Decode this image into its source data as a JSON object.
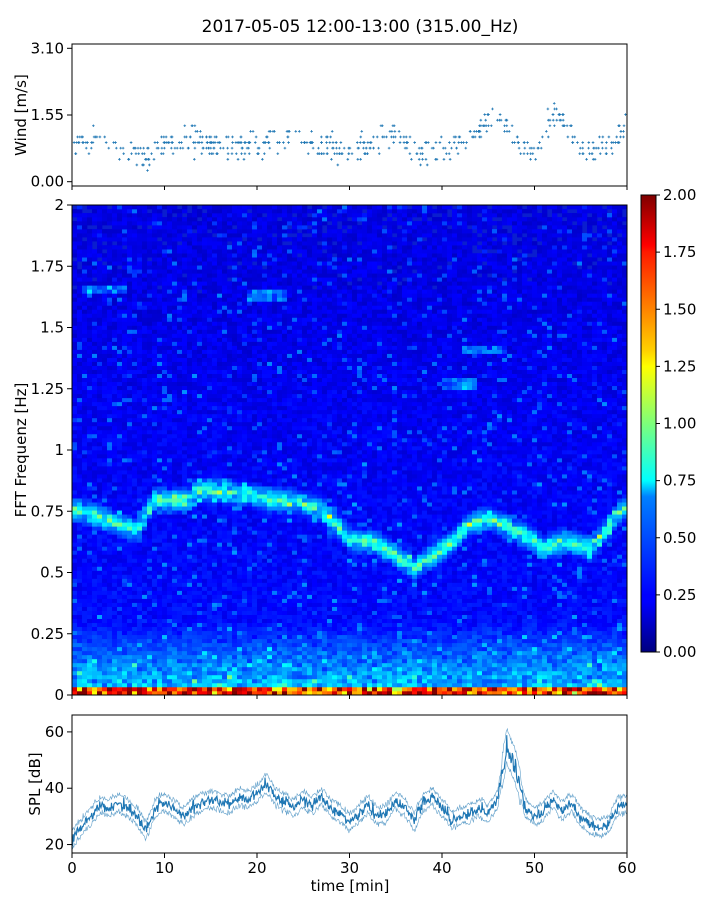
{
  "title": "2017-05-05 12:00-13:00 (315.00_Hz)",
  "chart_data": [
    {
      "id": "wind",
      "type": "scatter",
      "ylabel": "Wind [m/s]",
      "xlim": [
        0,
        60
      ],
      "ylim": [
        -0.1,
        3.2
      ],
      "yticks": [
        "0.00",
        "1.55",
        "3.10"
      ],
      "ytick_values": [
        0,
        1.55,
        3.1
      ],
      "color": "#1f77b4",
      "levels_mean": [
        [
          0,
          0.8
        ],
        [
          3,
          1.0
        ],
        [
          6,
          0.7
        ],
        [
          8,
          0.5
        ],
        [
          10,
          0.8
        ],
        [
          13,
          1.0
        ],
        [
          16,
          0.8
        ],
        [
          20,
          0.9
        ],
        [
          24,
          1.1
        ],
        [
          27,
          0.8
        ],
        [
          30,
          0.7
        ],
        [
          33,
          0.9
        ],
        [
          35,
          1.1
        ],
        [
          38,
          0.7
        ],
        [
          41,
          0.8
        ],
        [
          44,
          1.2
        ],
        [
          46,
          1.5
        ],
        [
          48,
          1.0
        ],
        [
          50,
          0.6
        ],
        [
          52,
          1.6
        ],
        [
          54,
          1.1
        ],
        [
          56,
          0.7
        ],
        [
          58,
          0.9
        ],
        [
          60,
          1.2
        ]
      ]
    },
    {
      "id": "spectrogram",
      "type": "heatmap",
      "ylabel": "FFT Frequenz [Hz]",
      "xlim": [
        0,
        60
      ],
      "ylim": [
        0,
        2
      ],
      "yticks": [
        "0",
        "0.25",
        "0.5",
        "0.75",
        "1",
        "1.25",
        "1.5",
        "1.75",
        "2"
      ],
      "ytick_values": [
        0,
        0.25,
        0.5,
        0.75,
        1,
        1.25,
        1.5,
        1.75,
        2
      ],
      "colormap": "jet",
      "colorbar_range": [
        0,
        2
      ],
      "colorbar_ticks": [
        "0.00",
        "0.25",
        "0.50",
        "0.75",
        "1.00",
        "1.25",
        "1.50",
        "1.75",
        "2.00"
      ],
      "colorbar_tick_values": [
        0,
        0.25,
        0.5,
        0.75,
        1,
        1.25,
        1.5,
        1.75,
        2
      ],
      "ridge_track": [
        [
          0,
          0.76
        ],
        [
          3,
          0.73
        ],
        [
          5,
          0.7
        ],
        [
          7,
          0.67
        ],
        [
          9,
          0.8
        ],
        [
          12,
          0.79
        ],
        [
          14,
          0.84
        ],
        [
          17,
          0.83
        ],
        [
          19,
          0.82
        ],
        [
          21,
          0.8
        ],
        [
          24,
          0.79
        ],
        [
          27,
          0.76
        ],
        [
          30,
          0.64
        ],
        [
          33,
          0.62
        ],
        [
          35,
          0.57
        ],
        [
          37,
          0.52
        ],
        [
          39,
          0.57
        ],
        [
          41,
          0.62
        ],
        [
          43,
          0.7
        ],
        [
          45,
          0.72
        ],
        [
          47,
          0.69
        ],
        [
          49,
          0.65
        ],
        [
          51,
          0.6
        ],
        [
          53,
          0.63
        ],
        [
          56,
          0.6
        ],
        [
          60,
          0.78
        ]
      ],
      "extra_bands": [
        [
          19,
          23,
          1.63
        ],
        [
          42,
          47,
          1.41
        ],
        [
          40,
          44,
          1.27
        ],
        [
          1,
          6,
          1.66
        ]
      ]
    },
    {
      "id": "spl",
      "type": "line",
      "ylabel": "SPL [dB]",
      "xlabel": "time [min]",
      "xlim": [
        0,
        60
      ],
      "ylim": [
        17,
        66
      ],
      "xticks": [
        "0",
        "10",
        "20",
        "30",
        "40",
        "50",
        "60"
      ],
      "xtick_values": [
        0,
        10,
        20,
        30,
        40,
        50,
        60
      ],
      "yticks": [
        "20",
        "40",
        "60"
      ],
      "ytick_values": [
        20,
        40,
        60
      ],
      "color": "#1f77b4",
      "envelope": [
        [
          0,
          22
        ],
        [
          1,
          26
        ],
        [
          2,
          30
        ],
        [
          3,
          34
        ],
        [
          4,
          33
        ],
        [
          5,
          35
        ],
        [
          6,
          33
        ],
        [
          7,
          30
        ],
        [
          8,
          25
        ],
        [
          9,
          33
        ],
        [
          10,
          35
        ],
        [
          11,
          33
        ],
        [
          12,
          30
        ],
        [
          13,
          33
        ],
        [
          14,
          35
        ],
        [
          15,
          36
        ],
        [
          16,
          35
        ],
        [
          17,
          34
        ],
        [
          18,
          37
        ],
        [
          19,
          36
        ],
        [
          20,
          38
        ],
        [
          21,
          42
        ],
        [
          22,
          37
        ],
        [
          23,
          35
        ],
        [
          24,
          33
        ],
        [
          25,
          36
        ],
        [
          26,
          34
        ],
        [
          27,
          37
        ],
        [
          28,
          33
        ],
        [
          29,
          31
        ],
        [
          30,
          28
        ],
        [
          31,
          31
        ],
        [
          32,
          34
        ],
        [
          33,
          30
        ],
        [
          34,
          31
        ],
        [
          35,
          36
        ],
        [
          36,
          33
        ],
        [
          37,
          28
        ],
        [
          38,
          35
        ],
        [
          39,
          37
        ],
        [
          40,
          33
        ],
        [
          41,
          29
        ],
        [
          42,
          30
        ],
        [
          43,
          31
        ],
        [
          44,
          33
        ],
        [
          45,
          31
        ],
        [
          46,
          36
        ],
        [
          47,
          55
        ],
        [
          48,
          47
        ],
        [
          49,
          33
        ],
        [
          50,
          30
        ],
        [
          51,
          32
        ],
        [
          52,
          36
        ],
        [
          53,
          32
        ],
        [
          54,
          35
        ],
        [
          55,
          30
        ],
        [
          56,
          27
        ],
        [
          57,
          26
        ],
        [
          58,
          27
        ],
        [
          59,
          34
        ],
        [
          60,
          34
        ]
      ]
    }
  ]
}
